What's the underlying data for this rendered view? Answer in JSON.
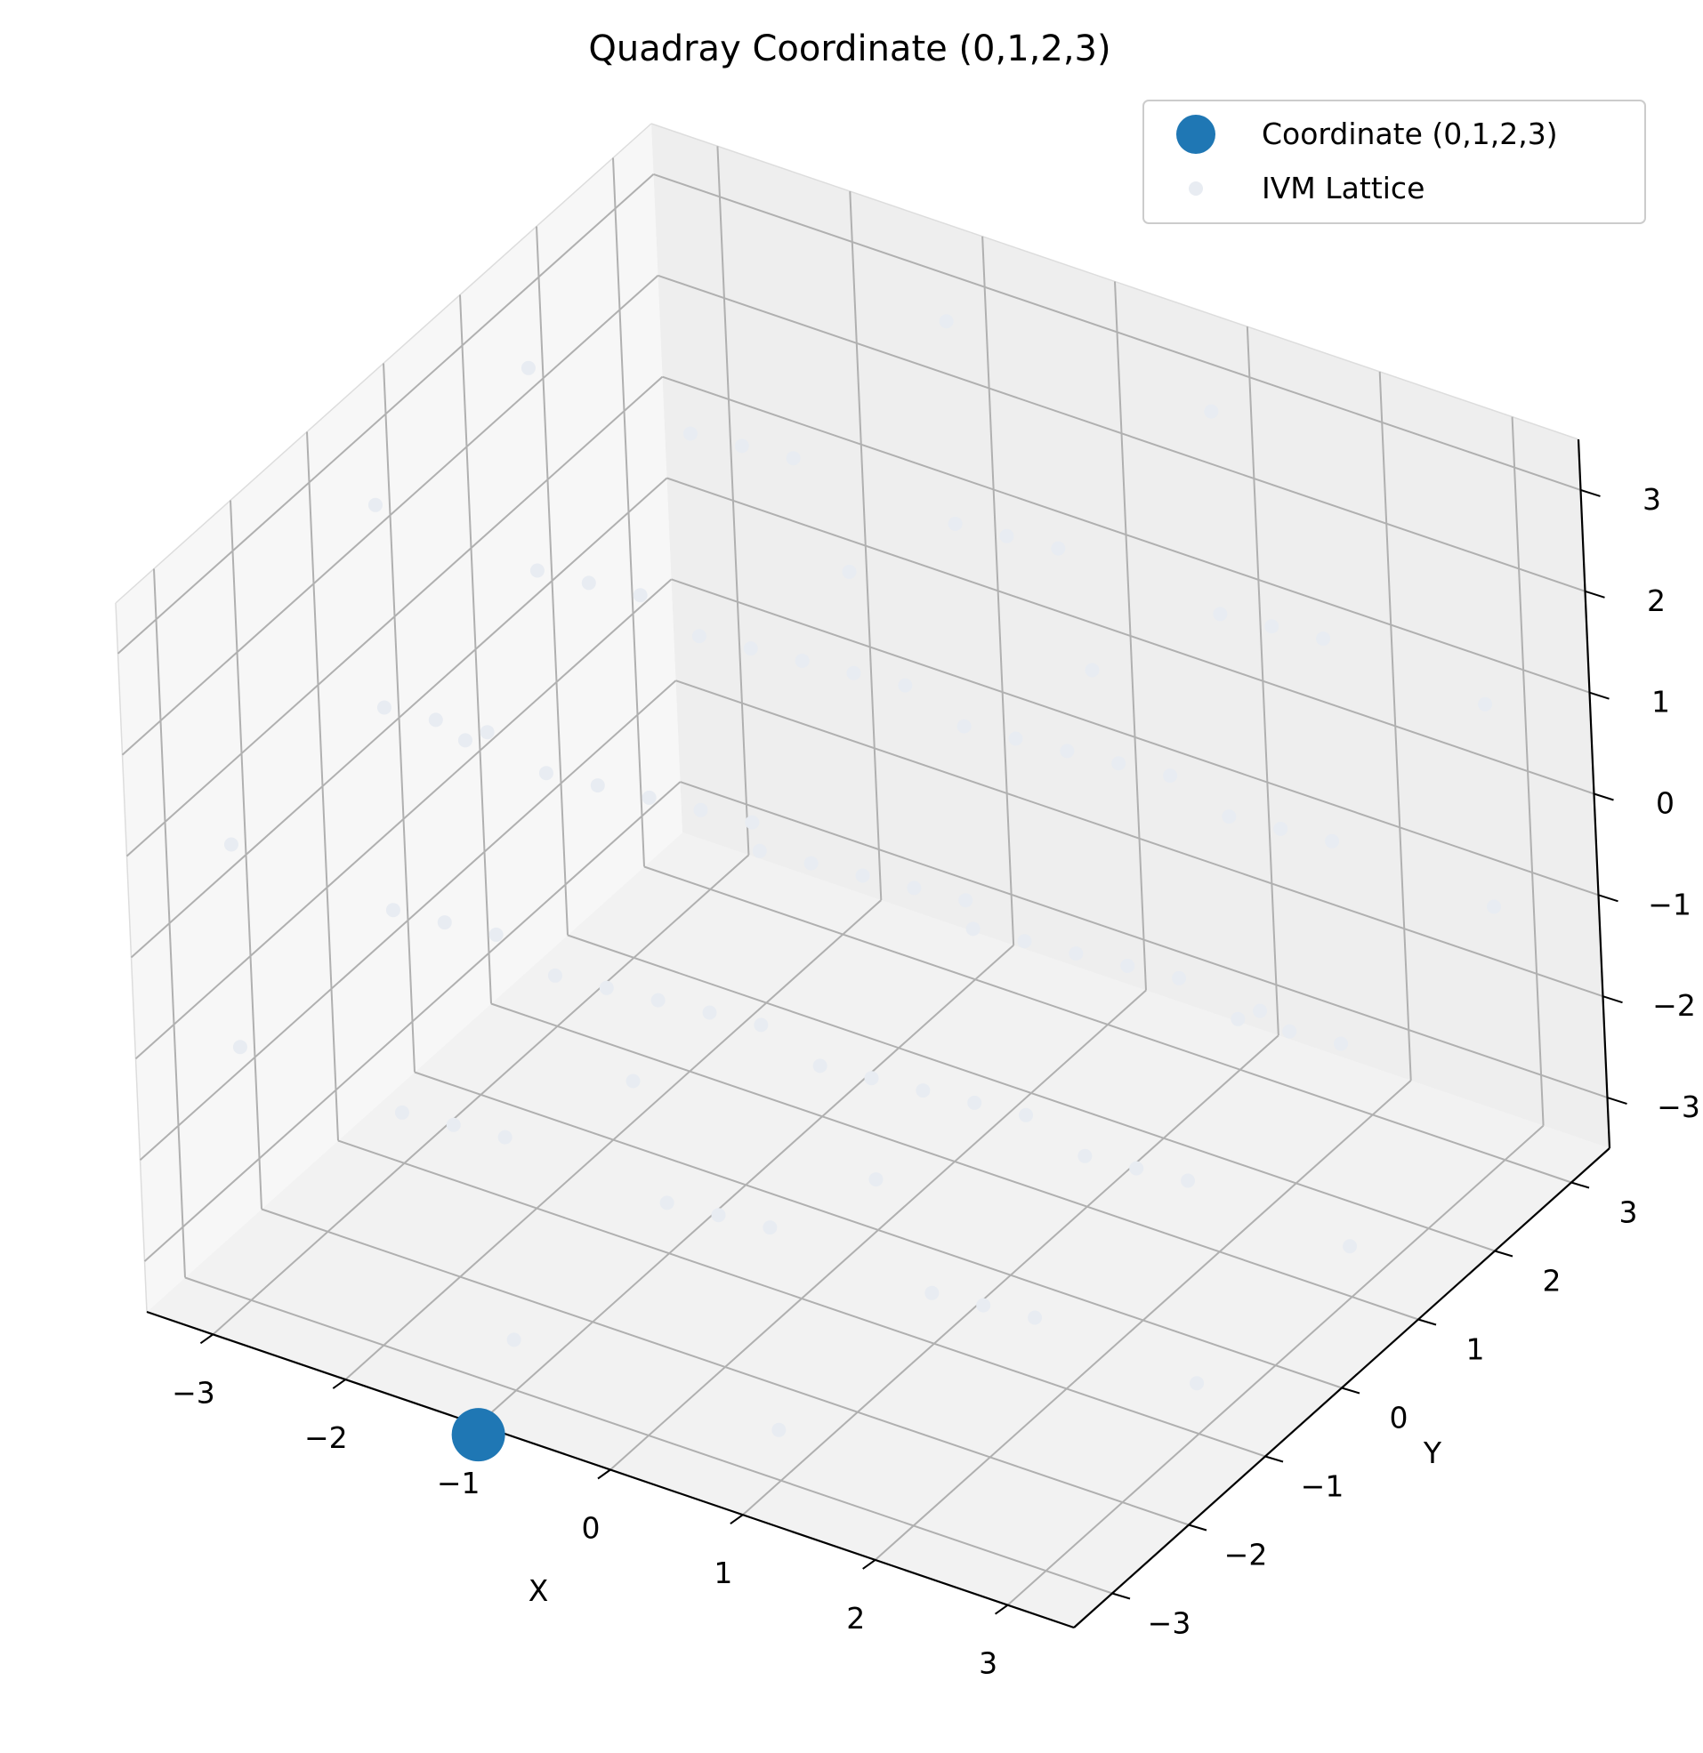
{
  "chart_data": {
    "type": "scatter",
    "projection": "3d",
    "title": "Quadray Coordinate (0,1,2,3)",
    "xlabel": "X",
    "ylabel": "Y",
    "zlabel": "",
    "xlim": [
      -3.5,
      3.5
    ],
    "ylim": [
      -3.5,
      3.5
    ],
    "zlim": [
      -3.5,
      3.5
    ],
    "xticks": [
      "−3",
      "−2",
      "−1",
      "0",
      "1",
      "2",
      "3"
    ],
    "yticks": [
      "−3",
      "−2",
      "−1",
      "0",
      "1",
      "2",
      "3"
    ],
    "zticks": [
      "−3",
      "−2",
      "−1",
      "0",
      "1",
      "2",
      "3"
    ],
    "grid": true,
    "legend": "top-right",
    "series": [
      {
        "name": "Coordinate (0,1,2,3)",
        "color": "#1f77b4",
        "points": [
          [
            -1.0,
            -3.5,
            -3.6
          ]
        ]
      },
      {
        "name": "IVM Lattice",
        "color": "#e8ecf2",
        "points": [
          [
            -2,
            -2,
            -2
          ],
          [
            -2,
            -2,
            0
          ],
          [
            -2,
            -2,
            2
          ],
          [
            -2,
            0,
            -2
          ],
          [
            -2,
            0,
            0
          ],
          [
            -2,
            0,
            2
          ],
          [
            -2,
            2,
            -2
          ],
          [
            -2,
            2,
            0
          ],
          [
            -2,
            2,
            2
          ],
          [
            0,
            -2,
            -2
          ],
          [
            0,
            -2,
            0
          ],
          [
            0,
            -2,
            2
          ],
          [
            0,
            0,
            -2
          ],
          [
            0,
            0,
            0
          ],
          [
            0,
            0,
            2
          ],
          [
            0,
            2,
            -2
          ],
          [
            0,
            2,
            0
          ],
          [
            0,
            2,
            2
          ],
          [
            2,
            -2,
            -2
          ],
          [
            2,
            -2,
            0
          ],
          [
            2,
            -2,
            2
          ],
          [
            2,
            0,
            -2
          ],
          [
            2,
            0,
            0
          ],
          [
            2,
            0,
            2
          ],
          [
            2,
            2,
            -2
          ],
          [
            2,
            2,
            0
          ],
          [
            2,
            2,
            2
          ],
          [
            -1,
            -1,
            -1
          ],
          [
            -1,
            -1,
            1
          ],
          [
            -1,
            1,
            -1
          ],
          [
            -1,
            1,
            1
          ],
          [
            1,
            -1,
            -1
          ],
          [
            1,
            -1,
            1
          ],
          [
            1,
            1,
            -1
          ],
          [
            1,
            1,
            1
          ],
          [
            -3,
            -3,
            -1
          ],
          [
            -3,
            -3,
            1
          ],
          [
            -3,
            -1,
            -3
          ],
          [
            -3,
            -1,
            -1
          ],
          [
            -3,
            -1,
            1
          ],
          [
            -3,
            -1,
            3
          ],
          [
            -3,
            1,
            -3
          ],
          [
            -3,
            1,
            -1
          ],
          [
            -3,
            1,
            1
          ],
          [
            -3,
            1,
            3
          ],
          [
            -3,
            3,
            -1
          ],
          [
            -3,
            3,
            1
          ],
          [
            -1,
            -3,
            -3
          ],
          [
            -1,
            -3,
            -1
          ],
          [
            -1,
            -3,
            1
          ],
          [
            -1,
            -3,
            3
          ],
          [
            -1,
            -1,
            -3
          ],
          [
            -1,
            -1,
            3
          ],
          [
            -1,
            1,
            -3
          ],
          [
            -1,
            1,
            3
          ],
          [
            -1,
            3,
            -3
          ],
          [
            -1,
            3,
            -1
          ],
          [
            -1,
            3,
            1
          ],
          [
            -1,
            3,
            3
          ],
          [
            1,
            -3,
            -3
          ],
          [
            1,
            -3,
            -1
          ],
          [
            1,
            -3,
            1
          ],
          [
            1,
            -3,
            3
          ],
          [
            1,
            -1,
            -3
          ],
          [
            1,
            -1,
            3
          ],
          [
            1,
            1,
            -3
          ],
          [
            1,
            1,
            3
          ],
          [
            1,
            3,
            -3
          ],
          [
            1,
            3,
            -1
          ],
          [
            1,
            3,
            1
          ],
          [
            1,
            3,
            3
          ],
          [
            3,
            -3,
            -1
          ],
          [
            3,
            -3,
            1
          ],
          [
            3,
            -1,
            -3
          ],
          [
            3,
            -1,
            -1
          ],
          [
            3,
            -1,
            1
          ],
          [
            3,
            -1,
            3
          ],
          [
            3,
            1,
            -3
          ],
          [
            3,
            1,
            -1
          ],
          [
            3,
            1,
            1
          ],
          [
            3,
            1,
            3
          ],
          [
            3,
            3,
            -1
          ],
          [
            3,
            3,
            1
          ],
          [
            0,
            -3,
            0
          ],
          [
            0,
            3,
            0
          ],
          [
            -3,
            0,
            0
          ],
          [
            3,
            0,
            0
          ],
          [
            0,
            0,
            -3
          ],
          [
            0,
            0,
            3
          ]
        ]
      }
    ]
  }
}
